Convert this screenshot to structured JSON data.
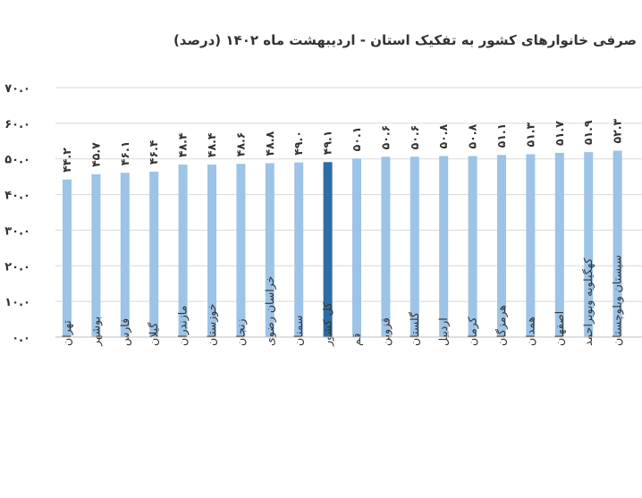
{
  "chart_data": {
    "type": "bar",
    "title": "صرفی خانوارهای کشور به تفکیک استان - اردیبهشت ماه ۱۴۰۲ (درصد)",
    "xlabel": "",
    "ylabel": "",
    "ylim": [
      0,
      70
    ],
    "y_ticks": [
      0,
      10,
      20,
      30,
      40,
      50,
      60,
      70
    ],
    "y_tick_labels": [
      "۰.۰",
      "۱۰.۰",
      "۲۰.۰",
      "۳۰.۰",
      "۴۰.۰",
      "۵۰.۰",
      "۶۰.۰",
      "۷۰.۰"
    ],
    "grid": true,
    "categories": [
      "تهران",
      "بوشهر",
      "فارس",
      "گیلان",
      "مازندران",
      "خوزستان",
      "زنجان",
      "خراسان رضوی",
      "سمنان",
      "کل کشور",
      "قم",
      "قزوین",
      "گلستان",
      "اردبیل",
      "کرمان",
      "هرمزگان",
      "همدان",
      "اصفهان",
      "کهگیلویه وبویراحمد",
      "سیستان وبلوچستان"
    ],
    "values": [
      44.2,
      45.7,
      46.1,
      46.4,
      48.4,
      48.4,
      48.6,
      48.8,
      49.0,
      49.1,
      50.1,
      50.6,
      50.6,
      50.8,
      50.8,
      51.1,
      51.3,
      51.7,
      51.9,
      52.3
    ],
    "value_labels": [
      "۴۴.۲",
      "۴۵.۷",
      "۴۶.۱",
      "۴۶.۴",
      "۴۸.۴",
      "۴۸.۴",
      "۴۸.۶",
      "۴۸.۸",
      "۴۹.۰",
      "۴۹.۱",
      "۵۰.۱",
      "۵۰.۶",
      "۵۰.۶",
      "۵۰.۸",
      "۵۰.۸",
      "۵۱.۱",
      "۵۱.۳",
      "۵۱.۷",
      "۵۱.۹",
      "۵۲.۳"
    ],
    "highlight_category": "کل کشور",
    "colors": {
      "bar": "#9dc3e6",
      "highlight": "#2e6da4",
      "grid": "#d9d9d9",
      "text": "#333333"
    }
  }
}
